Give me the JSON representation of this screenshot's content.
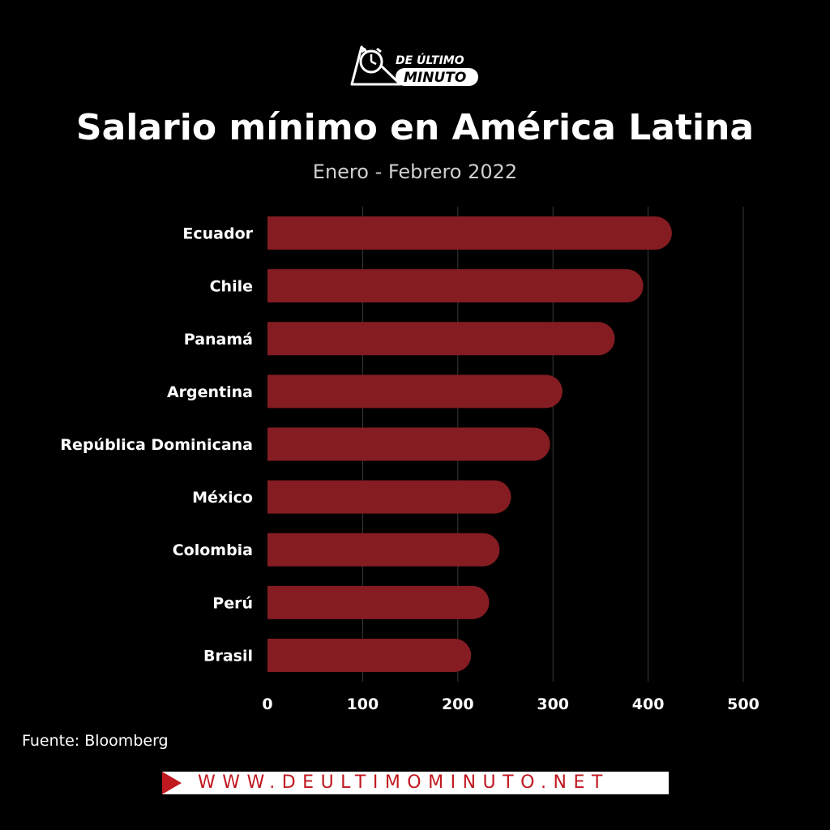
{
  "brand": {
    "logo_text_top": "DE ÚLTIMO",
    "logo_text_bottom": "MINUTO",
    "logo_icon": "alarm-clock-icon",
    "url": "WWW.DEULTIMOMINUTO.NET",
    "accent": "#c0181f"
  },
  "chart_data": {
    "type": "bar",
    "orientation": "horizontal",
    "title": "Salario mínimo en América Latina",
    "subtitle": "Enero - Febrero 2022",
    "categories": [
      "Ecuador",
      "Chile",
      "Panamá",
      "Argentina",
      "República Dominicana",
      "México",
      "Colombia",
      "Perú",
      "Brasil"
    ],
    "values": [
      425,
      395,
      365,
      310,
      297,
      256,
      244,
      233,
      214
    ],
    "xlim": [
      0,
      500
    ],
    "xticks": [
      0,
      100,
      200,
      300,
      400,
      500
    ],
    "grid": true,
    "bar_color": "#841c22",
    "source": "Fuente: Bloomberg"
  }
}
